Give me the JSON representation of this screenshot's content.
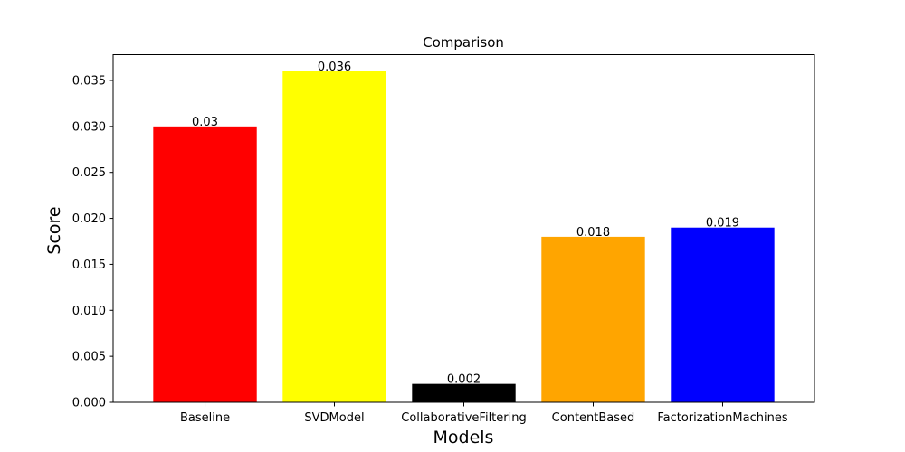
{
  "chart_data": {
    "type": "bar",
    "title": "Comparison",
    "xlabel": "Models",
    "ylabel": "Score",
    "categories": [
      "Baseline",
      "SVDModel",
      "CollaborativeFiltering",
      "ContentBased",
      "FactorizationMachines"
    ],
    "values": [
      0.03,
      0.036,
      0.002,
      0.018,
      0.019
    ],
    "value_labels": [
      "0.03",
      "0.036",
      "0.002",
      "0.018",
      "0.019"
    ],
    "colors": [
      "#ff0000",
      "#ffff00",
      "#000000",
      "#ffa500",
      "#0000ff"
    ],
    "ylim": [
      0,
      0.0378
    ],
    "yticks": [
      0,
      0.005,
      0.01,
      0.015,
      0.02,
      0.025,
      0.03,
      0.035
    ],
    "ytick_labels": [
      "0.000",
      "0.005",
      "0.010",
      "0.015",
      "0.020",
      "0.025",
      "0.030",
      "0.035"
    ],
    "grid": false,
    "legend": false
  }
}
